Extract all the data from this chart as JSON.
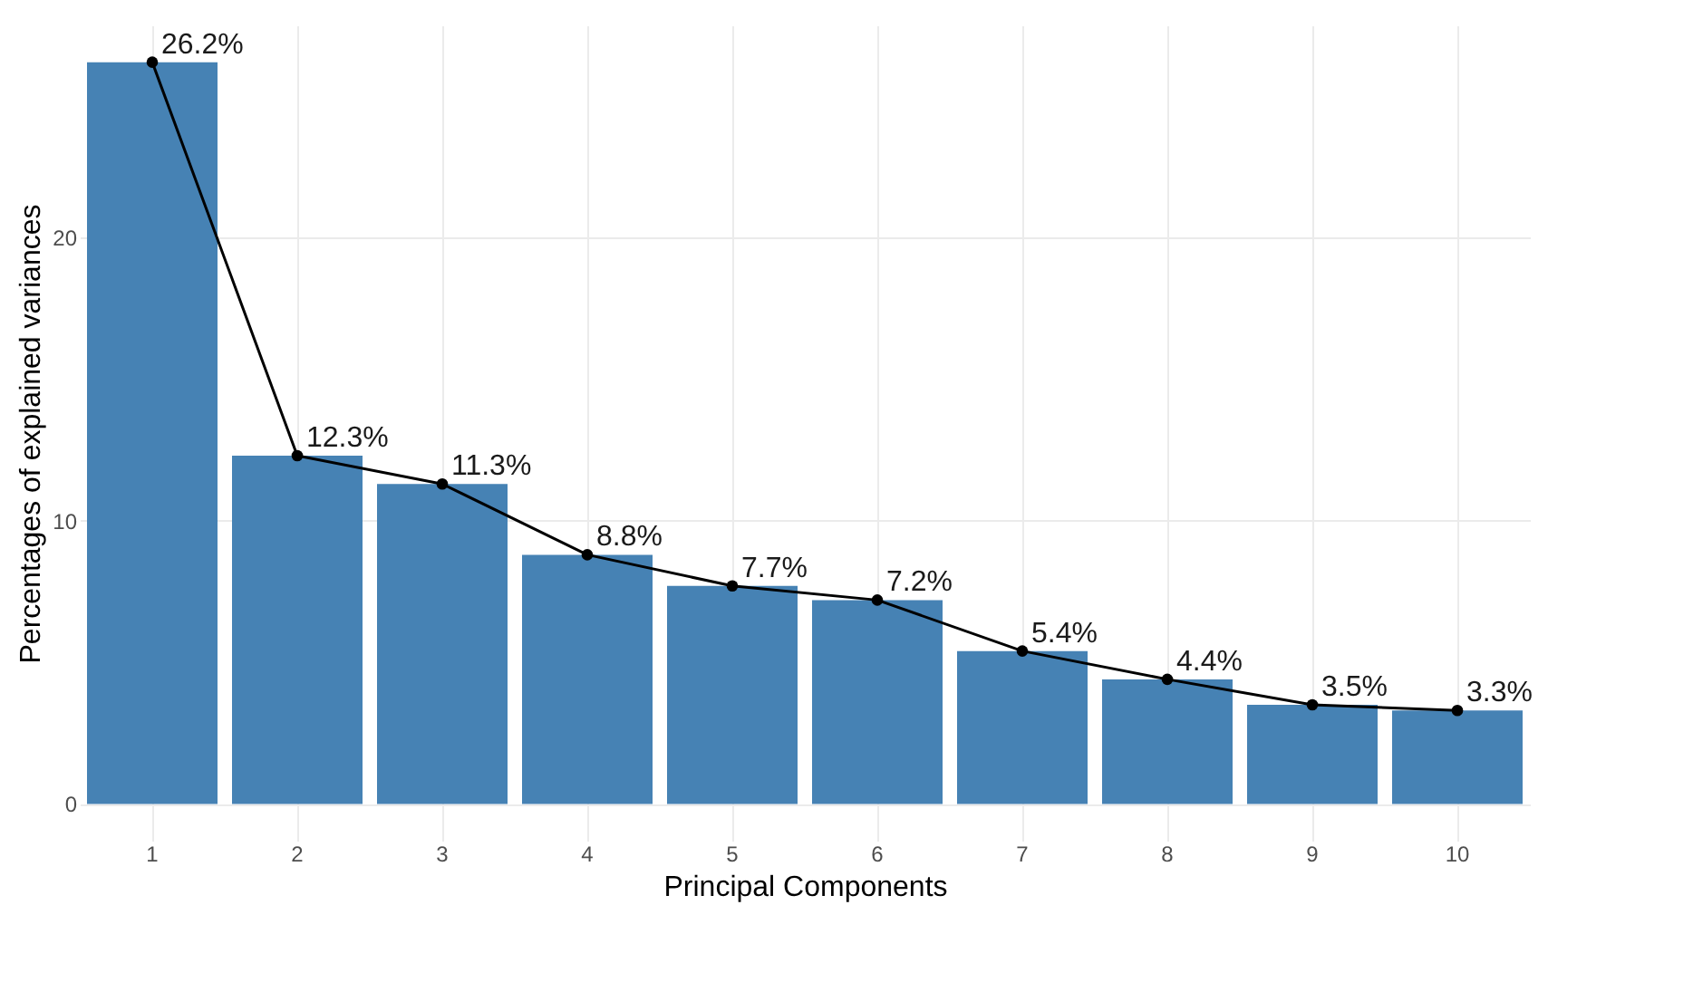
{
  "chart_data": {
    "type": "bar",
    "xlabel": "Principal Components",
    "ylabel": "Percentages of explained variances",
    "categories": [
      "1",
      "2",
      "3",
      "4",
      "5",
      "6",
      "7",
      "8",
      "9",
      "10"
    ],
    "series": [
      {
        "type": "bar",
        "color": "#4682b4",
        "values": [
          26.2,
          12.3,
          11.3,
          8.8,
          7.7,
          7.2,
          5.4,
          4.4,
          3.5,
          3.3
        ]
      },
      {
        "type": "line",
        "color": "#000000",
        "values": [
          26.2,
          12.3,
          11.3,
          8.8,
          7.7,
          7.2,
          5.4,
          4.4,
          3.5,
          3.3
        ],
        "value_labels": [
          "26.2%",
          "12.3%",
          "11.3%",
          "8.8%",
          "7.7%",
          "7.2%",
          "5.4%",
          "4.4%",
          "3.5%",
          "3.3%"
        ]
      }
    ],
    "ylim": [
      -1.3,
      27.5
    ],
    "yticks": [
      0,
      10,
      20
    ],
    "grid": true,
    "marker": "circle"
  }
}
